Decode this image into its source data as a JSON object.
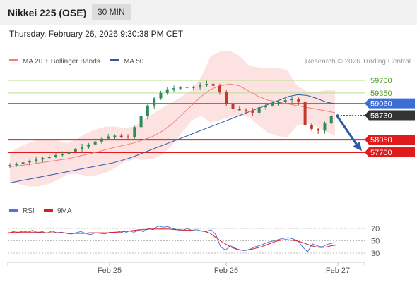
{
  "header": {
    "title": "Nikkei 225 (OSE)",
    "timeframe": "30 MIN"
  },
  "datetime": "Thursday, February 26, 2026 9:30:38 PM CET",
  "legend": {
    "ma20_label": "MA 20 + Bollinger Bands",
    "ma50_label": "MA 50",
    "copyright": "Research © 2026 Trading Central",
    "rsi_label": "RSI",
    "rsi_ma_label": "9MA"
  },
  "colors": {
    "ma20": "#f08080",
    "bollinger_fill": "#fde2e2",
    "ma50": "#2a5aa8",
    "resistance_lines": "#b9dd8f",
    "resistance_text": "#4d9a1a",
    "pivot": "#3b6fd6",
    "support": "#e01b1b",
    "last_price_tag": "#333333",
    "candle_up": "#2e8b57",
    "candle_down": "#c0392b",
    "rsi": "#4a78d4",
    "rsi_ma": "#e01b1b",
    "arrow": "#2a5aa8"
  },
  "chart_data": [
    {
      "type": "candlestick",
      "title": "Nikkei 225 (OSE)",
      "xlabel": "",
      "ylabel": "",
      "x_ticks": [
        "Feb 25",
        "Feb 26",
        "Feb 27"
      ],
      "ylim": [
        57400,
        60000
      ],
      "grid": false,
      "legend_position": "top-left",
      "series": [
        {
          "name": "MA 20 + Bollinger Bands"
        },
        {
          "name": "MA 50"
        }
      ],
      "levels": [
        {
          "value": 59700,
          "label": "59700",
          "kind": "resistance"
        },
        {
          "value": 59350,
          "label": "59350",
          "kind": "resistance"
        },
        {
          "value": 59060,
          "label": "59060",
          "kind": "pivot"
        },
        {
          "value": 58730,
          "label": "58730",
          "kind": "last"
        },
        {
          "value": 58050,
          "label": "58050",
          "kind": "support"
        },
        {
          "value": 57700,
          "label": "57700",
          "kind": "support"
        }
      ],
      "close_path": [
        57340,
        57380,
        57420,
        57460,
        57500,
        57540,
        57580,
        57620,
        57660,
        57720,
        57780,
        57850,
        57920,
        58000,
        58080,
        58140,
        58160,
        58140,
        58120,
        58400,
        58700,
        59000,
        59200,
        59350,
        59450,
        59480,
        59500,
        59520,
        59500,
        59560,
        59600,
        59550,
        59380,
        59050,
        58900,
        58880,
        58850,
        58800,
        58950,
        59000,
        59050,
        59100,
        59150,
        59180,
        59100,
        58450,
        58350,
        58300,
        58500,
        58700,
        58730
      ],
      "ma20_path": [
        57300,
        57330,
        57360,
        57400,
        57440,
        57480,
        57520,
        57580,
        57640,
        57700,
        57770,
        57840,
        57900,
        57960,
        58050,
        58150,
        58300,
        58500,
        58750,
        59000,
        59250,
        59450,
        59550,
        59600,
        59550,
        59400,
        59250,
        59150,
        59100,
        59050,
        59000,
        58950,
        58900,
        58850,
        58800
      ],
      "ma50_path": [
        56850,
        56900,
        56950,
        57000,
        57050,
        57100,
        57150,
        57200,
        57250,
        57300,
        57350,
        57400,
        57470,
        57550,
        57650,
        57750,
        57850,
        57950,
        58050,
        58150,
        58250,
        58350,
        58450,
        58550,
        58650,
        58750,
        58850,
        58950,
        59050,
        59150,
        59250,
        59300,
        59280,
        59200,
        59100,
        59050
      ]
    },
    {
      "type": "line",
      "title": "RSI",
      "ylim": [
        20,
        80
      ],
      "y_ticks": [
        70,
        50,
        30
      ],
      "x_ticks": [
        "Feb 25",
        "Feb 26",
        "Feb 27"
      ],
      "series": [
        {
          "name": "RSI",
          "values": [
            62,
            65,
            63,
            66,
            64,
            67,
            63,
            65,
            62,
            66,
            63,
            64,
            62,
            61,
            63,
            65,
            62,
            60,
            63,
            62,
            61,
            64,
            63,
            65,
            62,
            66,
            64,
            67,
            65,
            70,
            68,
            74,
            72,
            73,
            70,
            68,
            66,
            70,
            67,
            68,
            66,
            65,
            68,
            60,
            40,
            35,
            42,
            38,
            35,
            34,
            36,
            40,
            42,
            45,
            48,
            50,
            52,
            54,
            55,
            53,
            50,
            40,
            32,
            45,
            42,
            40,
            44,
            46,
            47
          ]
        },
        {
          "name": "9MA",
          "values": [
            63,
            64,
            64,
            64,
            64,
            64,
            64,
            63,
            63,
            63,
            63,
            63,
            62,
            62,
            62,
            62,
            63,
            63,
            63,
            63,
            63,
            64,
            64,
            65,
            66,
            67,
            68,
            68,
            69,
            69,
            69,
            69,
            69,
            68,
            68,
            67,
            67,
            66,
            66,
            65,
            62,
            56,
            50,
            45,
            40,
            37,
            35,
            35,
            36,
            38,
            40,
            43,
            46,
            49,
            51,
            52,
            51,
            50,
            48,
            45,
            42,
            40,
            39,
            40,
            42,
            43
          ]
        }
      ]
    }
  ]
}
